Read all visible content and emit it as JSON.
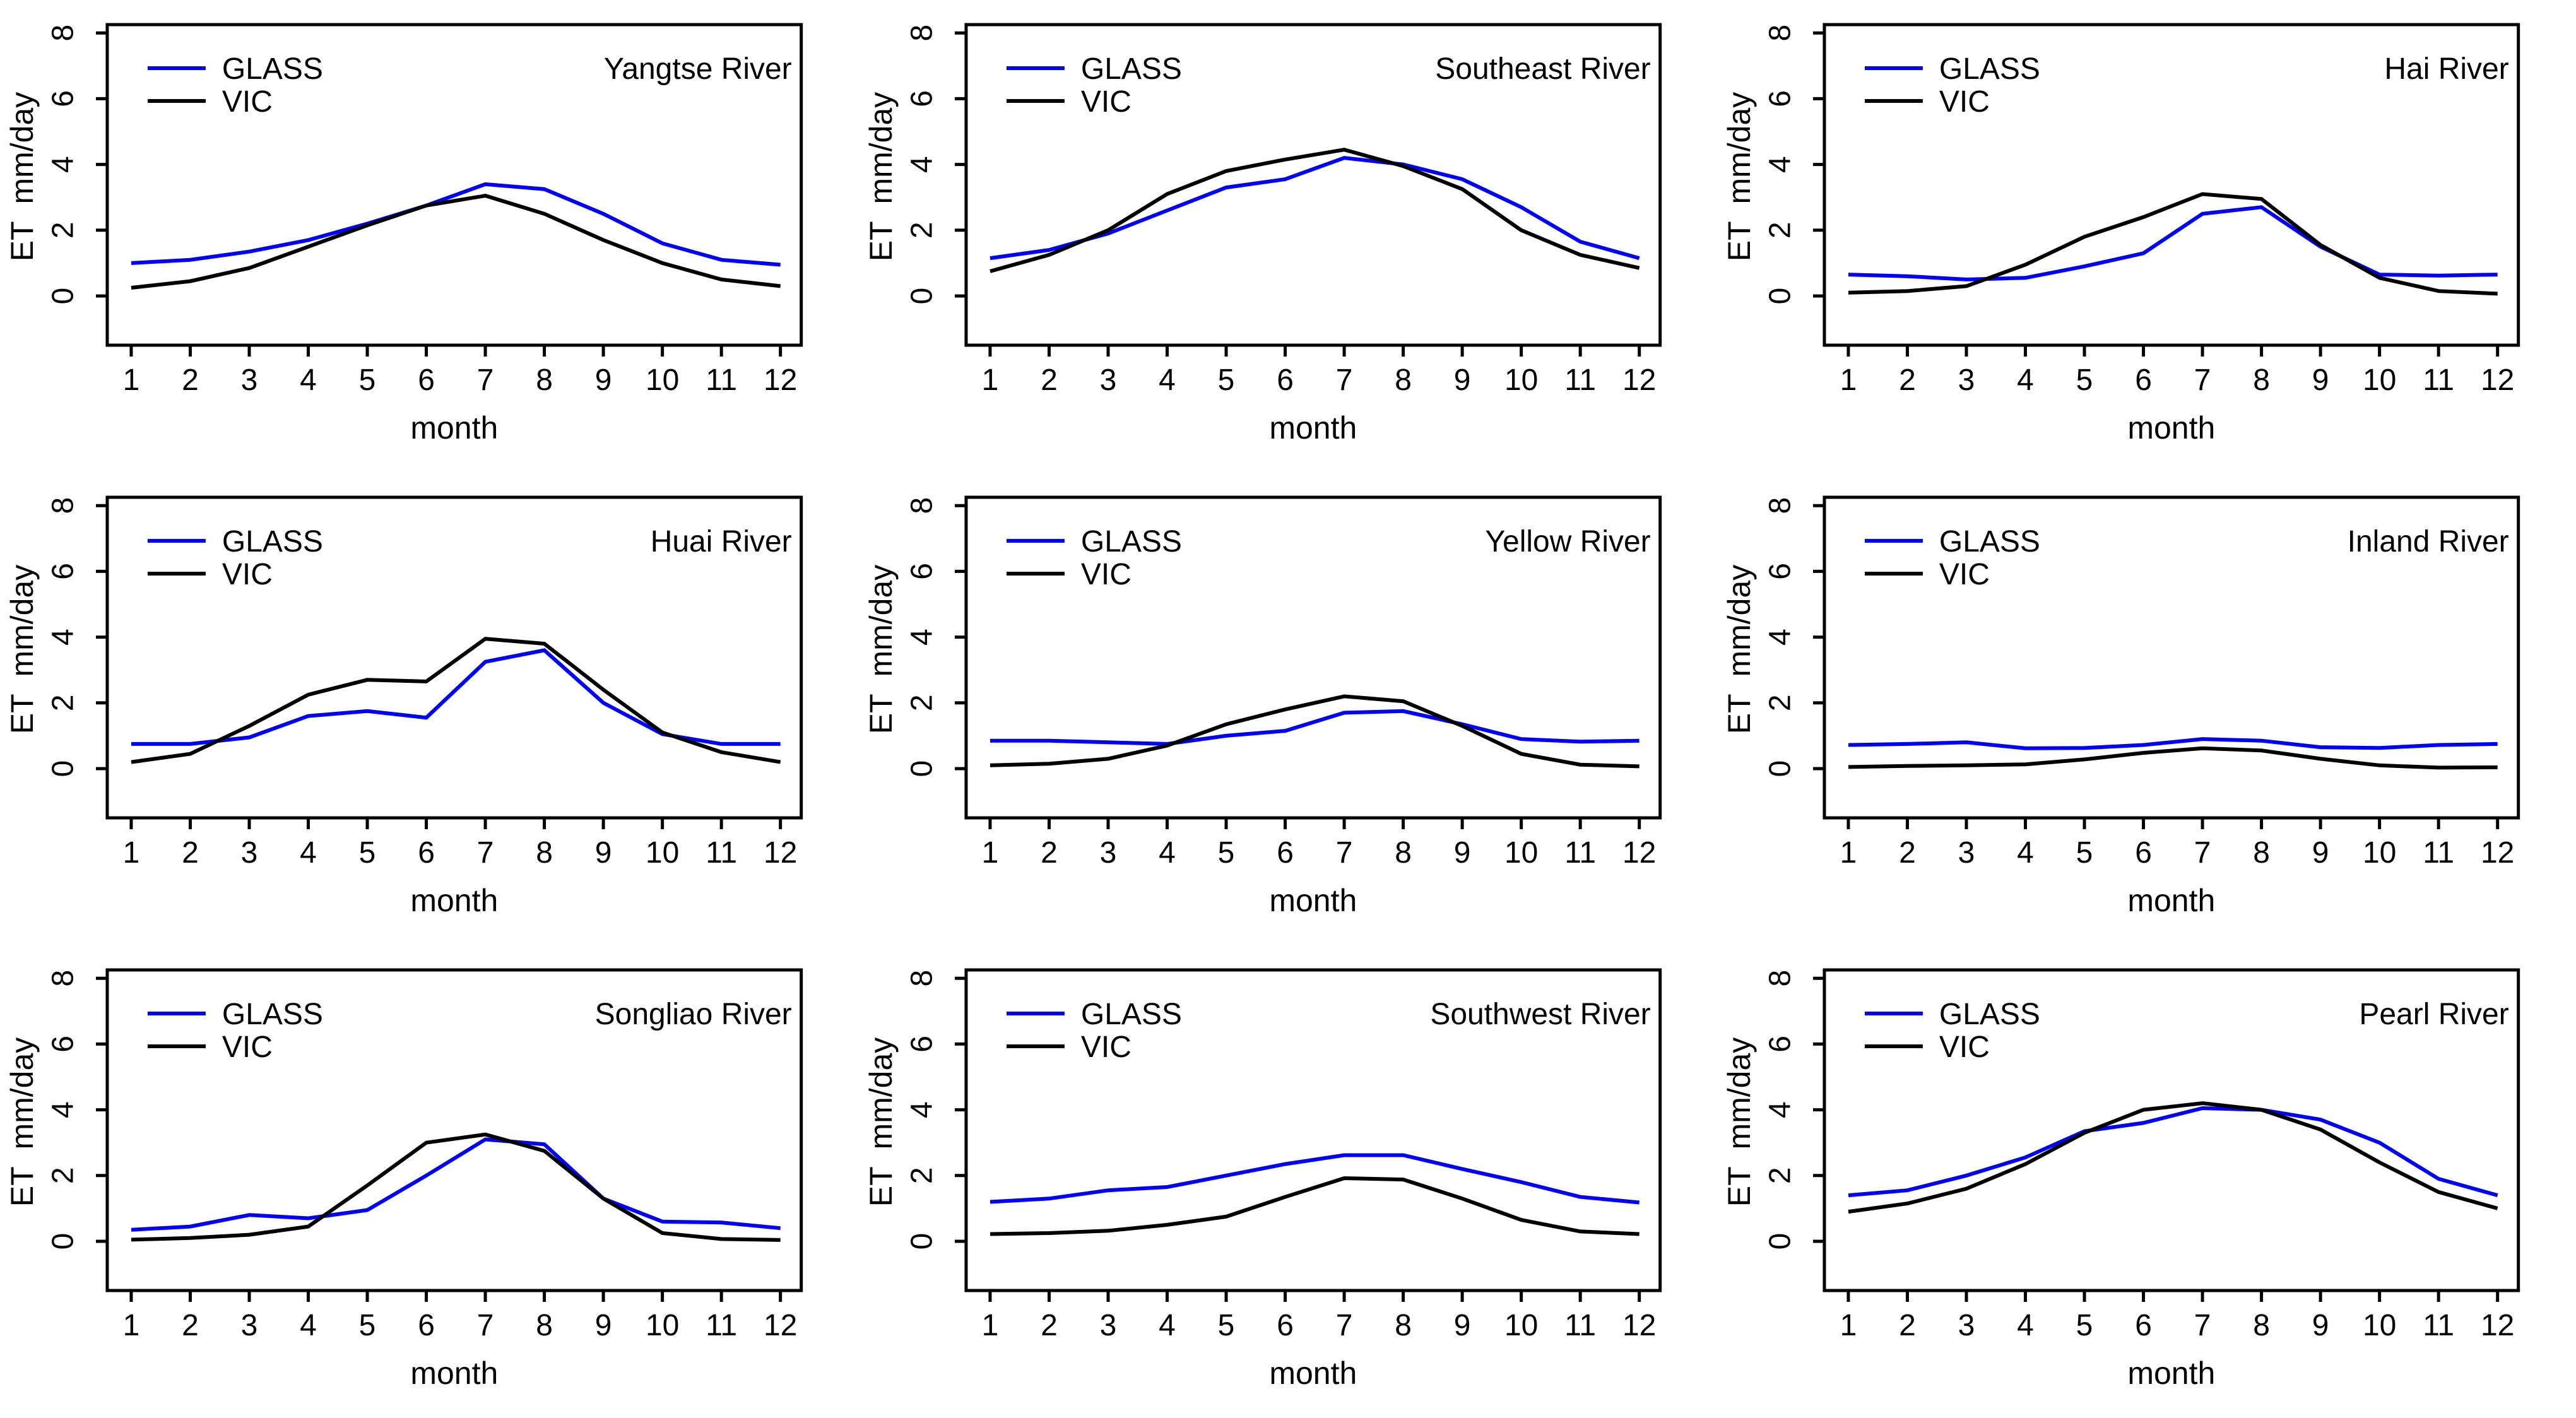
{
  "figure": {
    "description": "3x3 grid of monthly ET line charts comparing GLASS and VIC for nine Chinese river basins",
    "legend": {
      "items": [
        {
          "label": "GLASS",
          "color": "#0000ff"
        },
        {
          "label": "VIC",
          "color": "#000000"
        }
      ],
      "position": "top-left"
    }
  },
  "chart_data": {
    "type": "line",
    "x": [
      1,
      2,
      3,
      4,
      5,
      6,
      7,
      8,
      9,
      10,
      11,
      12
    ],
    "x_tick_labels": [
      "1",
      "2",
      "3",
      "4",
      "5",
      "6",
      "7",
      "8",
      "9",
      "10",
      "11",
      "12"
    ],
    "xlabel": "month",
    "ylabel": "ET  mm/day",
    "yticks": [
      0,
      2,
      4,
      6,
      8
    ],
    "ylim": [
      -1.5,
      8.45
    ],
    "grid": false,
    "legend_position": "top-left",
    "colors": {
      "GLASS": "#0000ff",
      "VIC": "#000000"
    },
    "panels": [
      {
        "title": "Yangtse River",
        "series": [
          {
            "name": "GLASS",
            "values": [
              1.0,
              1.1,
              1.35,
              1.7,
              2.2,
              2.75,
              3.4,
              3.25,
              2.5,
              1.6,
              1.1,
              0.95
            ]
          },
          {
            "name": "VIC",
            "values": [
              0.25,
              0.45,
              0.85,
              1.5,
              2.15,
              2.75,
              3.05,
              2.5,
              1.7,
              1.0,
              0.5,
              0.3
            ]
          }
        ]
      },
      {
        "title": "Southeast River",
        "series": [
          {
            "name": "GLASS",
            "values": [
              1.15,
              1.4,
              1.9,
              2.6,
              3.3,
              3.55,
              4.2,
              4.0,
              3.55,
              2.7,
              1.65,
              1.15
            ]
          },
          {
            "name": "VIC",
            "values": [
              0.75,
              1.25,
              2.0,
              3.1,
              3.8,
              4.15,
              4.45,
              3.95,
              3.25,
              2.0,
              1.25,
              0.85
            ]
          }
        ]
      },
      {
        "title": "Hai River",
        "series": [
          {
            "name": "GLASS",
            "values": [
              0.65,
              0.6,
              0.5,
              0.55,
              0.9,
              1.3,
              2.5,
              2.7,
              1.5,
              0.65,
              0.62,
              0.65
            ]
          },
          {
            "name": "VIC",
            "values": [
              0.1,
              0.15,
              0.3,
              0.95,
              1.8,
              2.4,
              3.1,
              2.95,
              1.55,
              0.55,
              0.15,
              0.07
            ]
          }
        ]
      },
      {
        "title": "Huai River",
        "series": [
          {
            "name": "GLASS",
            "values": [
              0.75,
              0.75,
              0.95,
              1.6,
              1.75,
              1.55,
              3.25,
              3.6,
              2.0,
              1.05,
              0.75,
              0.75
            ]
          },
          {
            "name": "VIC",
            "values": [
              0.2,
              0.45,
              1.3,
              2.25,
              2.7,
              2.65,
              3.95,
              3.8,
              2.4,
              1.1,
              0.5,
              0.2
            ]
          }
        ]
      },
      {
        "title": "Yellow River",
        "series": [
          {
            "name": "GLASS",
            "values": [
              0.85,
              0.85,
              0.8,
              0.75,
              1.0,
              1.15,
              1.7,
              1.75,
              1.35,
              0.9,
              0.82,
              0.85
            ]
          },
          {
            "name": "VIC",
            "values": [
              0.1,
              0.15,
              0.3,
              0.7,
              1.35,
              1.8,
              2.2,
              2.05,
              1.3,
              0.45,
              0.12,
              0.07
            ]
          }
        ]
      },
      {
        "title": "Inland River",
        "series": [
          {
            "name": "GLASS",
            "values": [
              0.72,
              0.75,
              0.8,
              0.62,
              0.63,
              0.72,
              0.9,
              0.85,
              0.65,
              0.63,
              0.72,
              0.75
            ]
          },
          {
            "name": "VIC",
            "values": [
              0.05,
              0.08,
              0.1,
              0.13,
              0.28,
              0.48,
              0.62,
              0.55,
              0.3,
              0.1,
              0.03,
              0.04
            ]
          }
        ]
      },
      {
        "title": "Songliao River",
        "series": [
          {
            "name": "GLASS",
            "values": [
              0.35,
              0.45,
              0.8,
              0.7,
              0.95,
              2.0,
              3.1,
              2.95,
              1.3,
              0.6,
              0.57,
              0.4
            ]
          },
          {
            "name": "VIC",
            "values": [
              0.05,
              0.1,
              0.2,
              0.45,
              1.7,
              3.0,
              3.25,
              2.75,
              1.3,
              0.25,
              0.07,
              0.04
            ]
          }
        ]
      },
      {
        "title": "Southwest River",
        "series": [
          {
            "name": "GLASS",
            "values": [
              1.2,
              1.3,
              1.55,
              1.65,
              2.0,
              2.35,
              2.62,
              2.62,
              2.2,
              1.8,
              1.35,
              1.18
            ]
          },
          {
            "name": "VIC",
            "values": [
              0.22,
              0.25,
              0.32,
              0.5,
              0.75,
              1.35,
              1.92,
              1.88,
              1.3,
              0.65,
              0.3,
              0.22
            ]
          }
        ]
      },
      {
        "title": "Pearl River",
        "series": [
          {
            "name": "GLASS",
            "values": [
              1.4,
              1.55,
              2.0,
              2.55,
              3.35,
              3.6,
              4.05,
              4.0,
              3.7,
              3.0,
              1.9,
              1.4
            ]
          },
          {
            "name": "VIC",
            "values": [
              0.9,
              1.15,
              1.6,
              2.35,
              3.3,
              4.0,
              4.2,
              4.0,
              3.4,
              2.4,
              1.5,
              1.0
            ]
          }
        ]
      }
    ]
  }
}
